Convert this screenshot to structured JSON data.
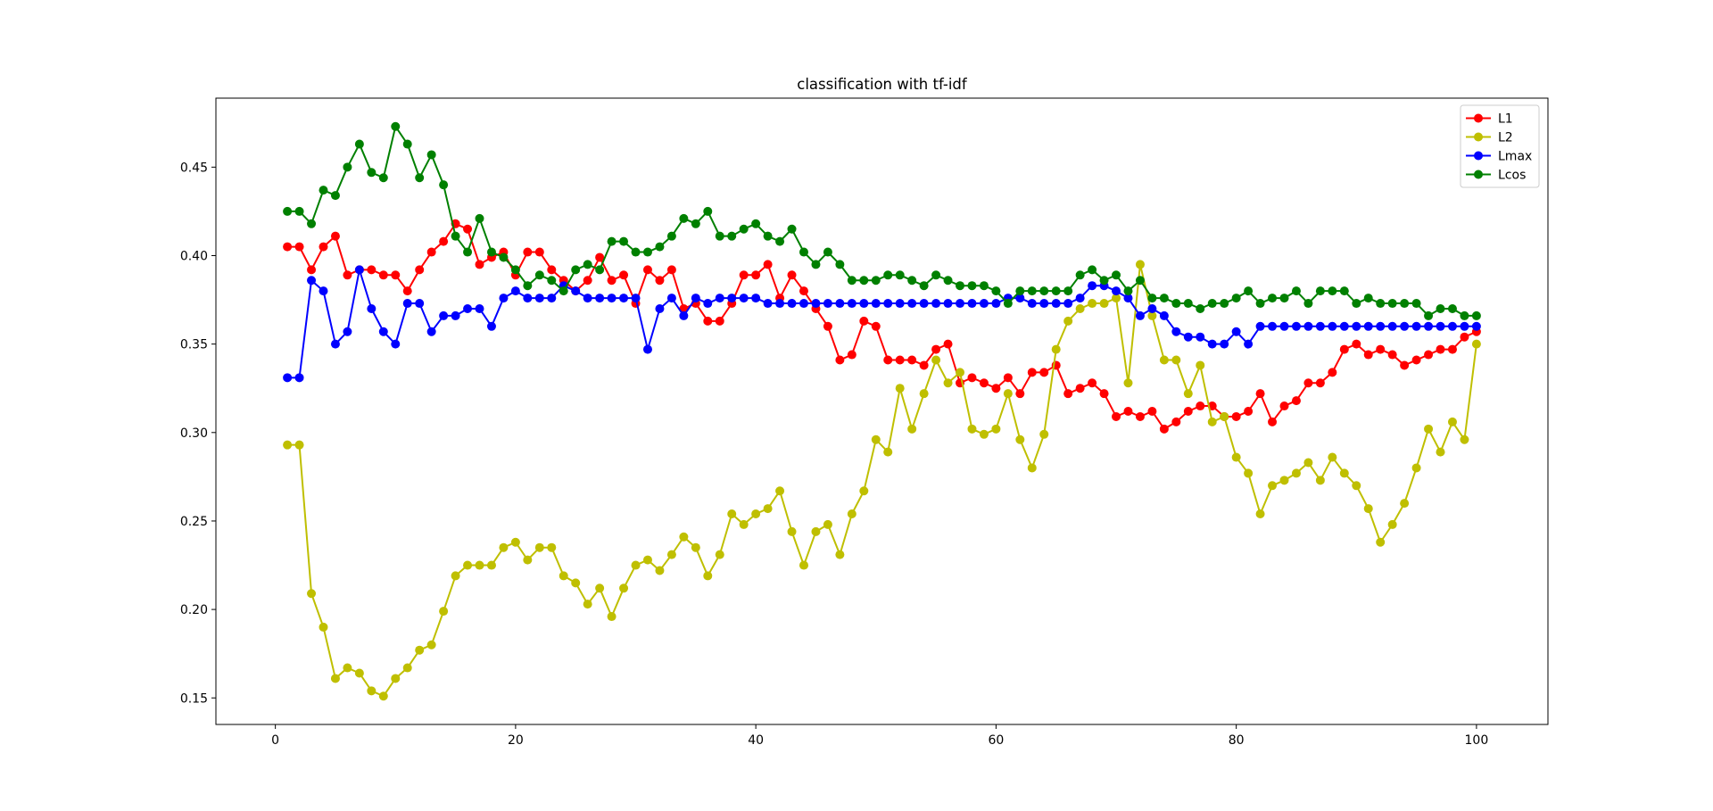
{
  "chart_data": {
    "type": "line",
    "title": "classification with tf-idf",
    "xlabel": "",
    "ylabel": "",
    "xlim": [
      -4.95,
      105.95
    ],
    "ylim": [
      0.135,
      0.489
    ],
    "xticks": [
      0,
      20,
      40,
      60,
      80,
      100
    ],
    "xtick_labels": [
      "0",
      "20",
      "40",
      "60",
      "80",
      "100"
    ],
    "yticks": [
      0.15,
      0.2,
      0.25,
      0.3,
      0.35,
      0.4,
      0.45
    ],
    "ytick_labels": [
      "0.15",
      "0.20",
      "0.25",
      "0.30",
      "0.35",
      "0.40",
      "0.45"
    ],
    "grid": false,
    "legend_position": "upper right",
    "x": [
      1,
      2,
      3,
      4,
      5,
      6,
      7,
      8,
      9,
      10,
      11,
      12,
      13,
      14,
      15,
      16,
      17,
      18,
      19,
      20,
      21,
      22,
      23,
      24,
      25,
      26,
      27,
      28,
      29,
      30,
      31,
      32,
      33,
      34,
      35,
      36,
      37,
      38,
      39,
      40,
      41,
      42,
      43,
      44,
      45,
      46,
      47,
      48,
      49,
      50,
      51,
      52,
      53,
      54,
      55,
      56,
      57,
      58,
      59,
      60,
      61,
      62,
      63,
      64,
      65,
      66,
      67,
      68,
      69,
      70,
      71,
      72,
      73,
      74,
      75,
      76,
      77,
      78,
      79,
      80,
      81,
      82,
      83,
      84,
      85,
      86,
      87,
      88,
      89,
      90,
      91,
      92,
      93,
      94,
      95,
      96,
      97,
      98,
      99,
      100
    ],
    "series": [
      {
        "name": "L1",
        "color": "#ff0000",
        "values": [
          0.405,
          0.405,
          0.392,
          0.405,
          0.411,
          0.389,
          0.392,
          0.392,
          0.389,
          0.389,
          0.38,
          0.392,
          0.402,
          0.408,
          0.418,
          0.415,
          0.395,
          0.399,
          0.402,
          0.389,
          0.402,
          0.402,
          0.392,
          0.386,
          0.38,
          0.386,
          0.399,
          0.386,
          0.389,
          0.373,
          0.392,
          0.386,
          0.392,
          0.37,
          0.373,
          0.363,
          0.363,
          0.373,
          0.389,
          0.389,
          0.395,
          0.376,
          0.389,
          0.38,
          0.37,
          0.36,
          0.341,
          0.344,
          0.363,
          0.36,
          0.341,
          0.341,
          0.341,
          0.338,
          0.347,
          0.35,
          0.328,
          0.331,
          0.328,
          0.325,
          0.331,
          0.322,
          0.334,
          0.334,
          0.338,
          0.322,
          0.325,
          0.328,
          0.322,
          0.309,
          0.312,
          0.309,
          0.312,
          0.302,
          0.306,
          0.312,
          0.315,
          0.315,
          0.309,
          0.309,
          0.312,
          0.322,
          0.306,
          0.315,
          0.318,
          0.328,
          0.328,
          0.334,
          0.347,
          0.35,
          0.344,
          0.347,
          0.344,
          0.338,
          0.341,
          0.344,
          0.347,
          0.347,
          0.354,
          0.357
        ]
      },
      {
        "name": "L2",
        "color": "#bfbf00",
        "values": [
          0.293,
          0.293,
          0.209,
          0.19,
          0.161,
          0.167,
          0.164,
          0.154,
          0.151,
          0.161,
          0.167,
          0.177,
          0.18,
          0.199,
          0.219,
          0.225,
          0.225,
          0.225,
          0.235,
          0.238,
          0.228,
          0.235,
          0.235,
          0.219,
          0.215,
          0.203,
          0.212,
          0.196,
          0.212,
          0.225,
          0.228,
          0.222,
          0.231,
          0.241,
          0.235,
          0.219,
          0.231,
          0.254,
          0.248,
          0.254,
          0.257,
          0.267,
          0.244,
          0.225,
          0.244,
          0.248,
          0.231,
          0.254,
          0.267,
          0.296,
          0.289,
          0.325,
          0.302,
          0.322,
          0.341,
          0.328,
          0.334,
          0.302,
          0.299,
          0.302,
          0.322,
          0.296,
          0.28,
          0.299,
          0.347,
          0.363,
          0.37,
          0.373,
          0.373,
          0.376,
          0.328,
          0.395,
          0.366,
          0.341,
          0.341,
          0.322,
          0.338,
          0.306,
          0.309,
          0.286,
          0.277,
          0.254,
          0.27,
          0.273,
          0.277,
          0.283,
          0.273,
          0.286,
          0.277,
          0.27,
          0.257,
          0.238,
          0.248,
          0.26,
          0.28,
          0.302,
          0.289,
          0.306,
          0.296,
          0.35
        ]
      },
      {
        "name": "Lmax",
        "color": "#0000ff",
        "values": [
          0.331,
          0.331,
          0.386,
          0.38,
          0.35,
          0.357,
          0.392,
          0.37,
          0.357,
          0.35,
          0.373,
          0.373,
          0.357,
          0.366,
          0.366,
          0.37,
          0.37,
          0.36,
          0.376,
          0.38,
          0.376,
          0.376,
          0.376,
          0.383,
          0.38,
          0.376,
          0.376,
          0.376,
          0.376,
          0.376,
          0.347,
          0.37,
          0.376,
          0.366,
          0.376,
          0.373,
          0.376,
          0.376,
          0.376,
          0.376,
          0.373,
          0.373,
          0.373,
          0.373,
          0.373,
          0.373,
          0.373,
          0.373,
          0.373,
          0.373,
          0.373,
          0.373,
          0.373,
          0.373,
          0.373,
          0.373,
          0.373,
          0.373,
          0.373,
          0.373,
          0.376,
          0.376,
          0.373,
          0.373,
          0.373,
          0.373,
          0.376,
          0.383,
          0.383,
          0.38,
          0.376,
          0.366,
          0.37,
          0.366,
          0.357,
          0.354,
          0.354,
          0.35,
          0.35,
          0.357,
          0.35,
          0.36,
          0.36,
          0.36,
          0.36,
          0.36,
          0.36,
          0.36,
          0.36,
          0.36,
          0.36,
          0.36,
          0.36,
          0.36,
          0.36,
          0.36,
          0.36,
          0.36,
          0.36,
          0.36
        ]
      },
      {
        "name": "Lcos",
        "color": "#008000",
        "values": [
          0.425,
          0.425,
          0.418,
          0.437,
          0.434,
          0.45,
          0.463,
          0.447,
          0.444,
          0.473,
          0.463,
          0.444,
          0.457,
          0.44,
          0.411,
          0.402,
          0.421,
          0.402,
          0.399,
          0.392,
          0.383,
          0.389,
          0.386,
          0.38,
          0.392,
          0.395,
          0.392,
          0.408,
          0.408,
          0.402,
          0.402,
          0.405,
          0.411,
          0.421,
          0.418,
          0.425,
          0.411,
          0.411,
          0.415,
          0.418,
          0.411,
          0.408,
          0.415,
          0.402,
          0.395,
          0.402,
          0.395,
          0.386,
          0.386,
          0.386,
          0.389,
          0.389,
          0.386,
          0.383,
          0.389,
          0.386,
          0.383,
          0.383,
          0.383,
          0.38,
          0.373,
          0.38,
          0.38,
          0.38,
          0.38,
          0.38,
          0.389,
          0.392,
          0.386,
          0.389,
          0.38,
          0.386,
          0.376,
          0.376,
          0.373,
          0.373,
          0.37,
          0.373,
          0.373,
          0.376,
          0.38,
          0.373,
          0.376,
          0.376,
          0.38,
          0.373,
          0.38,
          0.38,
          0.38,
          0.373,
          0.376,
          0.373,
          0.373,
          0.373,
          0.373,
          0.366,
          0.37,
          0.37,
          0.366,
          0.366
        ]
      }
    ]
  }
}
